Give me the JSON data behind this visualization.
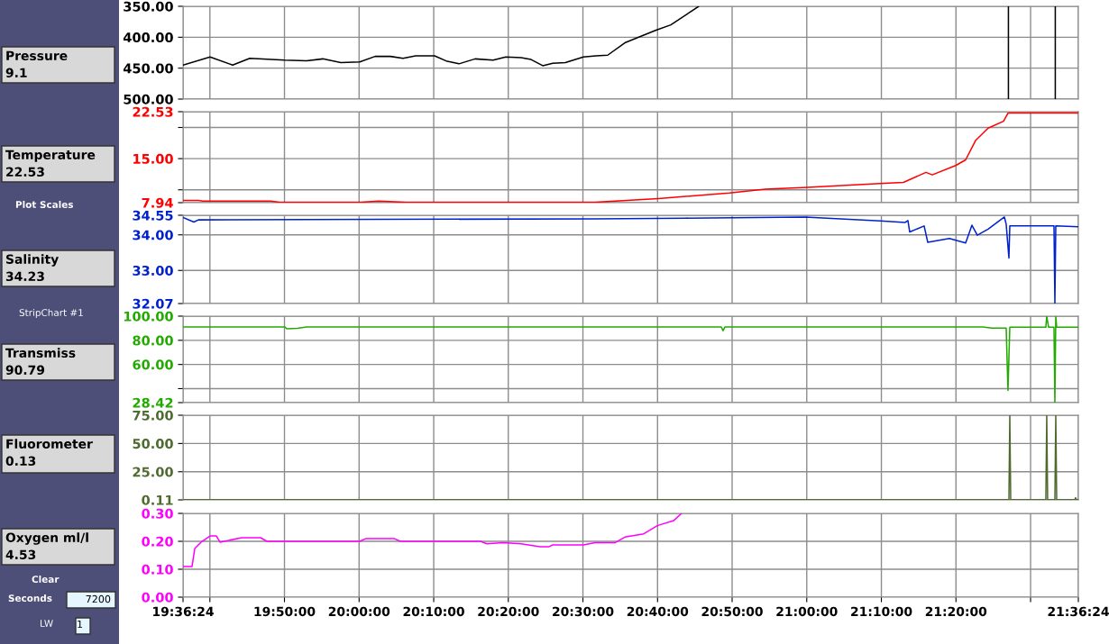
{
  "chart_data": [
    {
      "type": "other",
      "annotations": [
        "Pressure",
        "9.1",
        "Temperature",
        "22.53",
        "Plot Scales",
        "Salinity",
        "34.23",
        "StripChart #1",
        "Transmiss",
        "90.79",
        "Fluorometer",
        "0.13",
        "Oxygen ml/l",
        "4.53",
        "Clear",
        "Seconds",
        "7200",
        "LW",
        "1"
      ]
    },
    {
      "type": "line",
      "tick_labels": "y",
      "grid": true,
      "xlim": [
        19.6067,
        21.6067
      ],
      "ylim": [
        500,
        350
      ],
      "xticks": [
        19.6067,
        19.6667,
        19.8333,
        20.0,
        20.1667,
        20.3333,
        20.5,
        20.6667,
        20.8333,
        21.0,
        21.1667,
        21.3333,
        21.5,
        21.6067
      ],
      "yticks": [
        {
          "value": 350,
          "label": "350.00"
        },
        {
          "value": 400,
          "label": "400.00"
        },
        {
          "value": 450,
          "label": "450.00"
        },
        {
          "value": 500,
          "label": "500.00"
        }
      ],
      "series": [
        {
          "color": "#000000",
          "x": [
            19.6067,
            19.6671,
            19.7175,
            19.7557,
            19.8343,
            19.8826,
            19.9189,
            19.9592,
            20.0014,
            20.0357,
            20.0699,
            20.0981,
            20.1263,
            20.1686,
            20.1968,
            20.223,
            20.2592,
            20.2995,
            20.3277,
            20.362,
            20.3841,
            20.4103,
            20.4325,
            20.4607,
            20.501,
            20.5292,
            20.5553,
            20.5936,
            20.662,
            20.6963,
            20.7587
          ],
          "values": [
            445,
            432,
            445,
            434,
            437,
            438,
            435,
            441,
            440,
            431,
            431,
            434,
            430,
            430,
            439,
            443,
            435,
            437,
            432,
            433,
            436,
            446,
            442,
            441,
            432,
            430,
            429,
            409,
            389,
            380,
            350
          ]
        },
        {
          "color": "#000000",
          "x": [
            21.4505,
            21.4505
          ],
          "values": [
            350,
            500
          ]
        },
        {
          "color": "#000000",
          "x": [
            21.5552,
            21.5552
          ],
          "values": [
            350,
            500
          ]
        }
      ]
    },
    {
      "type": "line",
      "tick_labels": "y",
      "grid": true,
      "xlim": [
        19.6067,
        21.6067
      ],
      "ylim": [
        7.94,
        22.53
      ],
      "xticks": [
        19.6067,
        19.6667,
        19.8333,
        20.0,
        20.1667,
        20.3333,
        20.5,
        20.6667,
        20.8333,
        21.0,
        21.1667,
        21.3333,
        21.5,
        21.6067
      ],
      "yticks": [
        {
          "value": 7.94,
          "label": "7.94"
        },
        {
          "value": 10,
          "label": null
        },
        {
          "value": 15,
          "label": "15.00"
        },
        {
          "value": 20,
          "label": null
        },
        {
          "value": 22.53,
          "label": "22.53"
        }
      ],
      "series": [
        {
          "color": "#ff0000",
          "x": [
            19.6067,
            19.6409,
            19.651,
            19.8021,
            19.8222,
            20.0035,
            20.0438,
            20.1042,
            20.2049,
            20.5271,
            20.6681,
            20.8272,
            20.9077,
            21.0024,
            21.1636,
            21.2159,
            21.2663,
            21.2804,
            21.3327,
            21.3549,
            21.377,
            21.4052,
            21.4395,
            21.4495,
            21.6067
          ],
          "values": [
            8.3,
            8.3,
            8.2,
            8.2,
            8.0,
            8.0,
            8.2,
            8.0,
            8.0,
            8.0,
            8.6,
            9.5,
            10.1,
            10.4,
            11.0,
            11.2,
            12.8,
            12.4,
            13.9,
            14.8,
            17.9,
            19.9,
            21.0,
            22.3,
            22.3
          ]
        }
      ]
    },
    {
      "type": "line",
      "tick_labels": "y",
      "grid": true,
      "xlim": [
        19.6067,
        21.6067
      ],
      "ylim": [
        32.07,
        34.55
      ],
      "xticks": [
        19.6067,
        19.6667,
        19.8333,
        20.0,
        20.1667,
        20.3333,
        20.5,
        20.6667,
        20.8333,
        21.0,
        21.1667,
        21.3333,
        21.5,
        21.6067
      ],
      "yticks": [
        {
          "value": 32.07,
          "label": "32.07"
        },
        {
          "value": 33,
          "label": "33.00"
        },
        {
          "value": 34,
          "label": "34.00"
        },
        {
          "value": 34.55,
          "label": "34.55"
        }
      ],
      "series": [
        {
          "color": "#0022cc",
          "x": [
            19.6067,
            19.6309,
            19.6409,
            20.5271,
            20.7285,
            20.9964,
            21.1636,
            21.22,
            21.226,
            21.23,
            21.2622,
            21.2703,
            21.3186,
            21.3549,
            21.369,
            21.381,
            21.4052,
            21.4415,
            21.4455,
            21.4516,
            21.4536,
            21.5523,
            21.5543,
            21.5563,
            21.6067
          ],
          "values": [
            34.49,
            34.36,
            34.42,
            34.45,
            34.47,
            34.5,
            34.39,
            34.35,
            34.4,
            34.08,
            34.25,
            33.79,
            33.9,
            33.77,
            34.27,
            33.99,
            34.16,
            34.5,
            34.3,
            33.35,
            34.25,
            34.25,
            32.08,
            34.25,
            34.23
          ]
        }
      ]
    },
    {
      "type": "line",
      "tick_labels": "y",
      "grid": true,
      "xlim": [
        19.6067,
        21.6067
      ],
      "ylim": [
        28.42,
        100
      ],
      "xticks": [
        19.6067,
        19.6667,
        19.8333,
        20.0,
        20.1667,
        20.3333,
        20.5,
        20.6667,
        20.8333,
        21.0,
        21.1667,
        21.3333,
        21.5,
        21.6067
      ],
      "yticks": [
        {
          "value": 28.42,
          "label": "28.42"
        },
        {
          "value": 40,
          "label": null
        },
        {
          "value": 60,
          "label": "60.00"
        },
        {
          "value": 80,
          "label": "80.00"
        },
        {
          "value": 100,
          "label": "100.00"
        }
      ],
      "series": [
        {
          "color": "#22aa00",
          "x": [
            19.6067,
            19.8343,
            19.8383,
            19.8625,
            19.8826,
            20.8091,
            20.8131,
            20.8171,
            21.3932,
            21.4133,
            21.4455,
            21.4495,
            21.4536,
            21.5341,
            21.5361,
            21.5402,
            21.5523,
            21.5543,
            21.5563,
            21.5583,
            21.6067
          ],
          "values": [
            91,
            91,
            89.5,
            90,
            91,
            91,
            88,
            91,
            91,
            90.2,
            90.2,
            38.5,
            90.8,
            90.8,
            100,
            90.8,
            90.8,
            28.5,
            100,
            90.8,
            90.8
          ]
        }
      ]
    },
    {
      "type": "line",
      "tick_labels": "y",
      "grid": true,
      "xlim": [
        19.6067,
        21.6067
      ],
      "ylim": [
        0.11,
        75
      ],
      "xticks": [
        19.6067,
        19.6667,
        19.8333,
        20.0,
        20.1667,
        20.3333,
        20.5,
        20.6667,
        20.8333,
        21.0,
        21.1667,
        21.3333,
        21.5,
        21.6067
      ],
      "yticks": [
        {
          "value": 0.11,
          "label": "0.11"
        },
        {
          "value": 25,
          "label": "25.00"
        },
        {
          "value": 50,
          "label": "50.00"
        },
        {
          "value": 75,
          "label": "75.00"
        }
      ],
      "series": [
        {
          "color": "#4f6b2f",
          "x": [
            19.6067,
            21.4516,
            21.4536,
            21.4556,
            21.5341,
            21.5361,
            21.5381,
            21.5543,
            21.5563,
            21.5583,
            21.5986,
            21.6006,
            21.6026,
            21.6067
          ],
          "values": [
            0.2,
            0.2,
            75,
            0.2,
            0.2,
            75,
            0.2,
            0.2,
            75,
            0.2,
            0.2,
            2,
            0.2,
            0.2
          ]
        }
      ]
    },
    {
      "type": "line",
      "grid": true,
      "xlim": [
        19.6067,
        21.6067
      ],
      "ylim": [
        0,
        0.3
      ],
      "xticks": [
        {
          "value": 19.6067,
          "label": "19:36:24"
        },
        {
          "value": 19.6667,
          "label": null
        },
        {
          "value": 19.8333,
          "label": "19:50:00"
        },
        {
          "value": 20.0,
          "label": "20:00:00"
        },
        {
          "value": 20.1667,
          "label": "20:10:00"
        },
        {
          "value": 20.3333,
          "label": "20:20:00"
        },
        {
          "value": 20.5,
          "label": "20:30:00"
        },
        {
          "value": 20.6667,
          "label": "20:40:00"
        },
        {
          "value": 20.8333,
          "label": "20:50:00"
        },
        {
          "value": 21.0,
          "label": "21:00:00"
        },
        {
          "value": 21.1667,
          "label": "21:10:00"
        },
        {
          "value": 21.3333,
          "label": "21:20:00"
        },
        {
          "value": 21.5,
          "label": null
        },
        {
          "value": 21.6067,
          "label": "21:36:24"
        }
      ],
      "yticks": [
        {
          "value": 0,
          "label": "0.00"
        },
        {
          "value": 0.1,
          "label": "0.10"
        },
        {
          "value": 0.2,
          "label": "0.20"
        },
        {
          "value": 0.3,
          "label": "0.30"
        }
      ],
      "series": [
        {
          "color": "#ff00ff",
          "x": [
            19.6067,
            19.6268,
            19.6329,
            19.647,
            19.6671,
            19.6812,
            19.6893,
            19.7376,
            19.7799,
            19.794,
            20.0014,
            20.0155,
            20.078,
            20.0921,
            20.2713,
            20.2854,
            20.3217,
            20.362,
            20.4042,
            20.4244,
            20.4325,
            20.501,
            20.5271,
            20.5714,
            20.5936,
            20.6359,
            20.6661,
            20.7024,
            20.7205
          ],
          "values": [
            0.11,
            0.11,
            0.174,
            0.197,
            0.219,
            0.219,
            0.197,
            0.213,
            0.213,
            0.2,
            0.2,
            0.21,
            0.21,
            0.2,
            0.2,
            0.191,
            0.195,
            0.191,
            0.181,
            0.181,
            0.187,
            0.187,
            0.195,
            0.195,
            0.215,
            0.227,
            0.256,
            0.274,
            0.3
          ]
        }
      ]
    }
  ]
}
